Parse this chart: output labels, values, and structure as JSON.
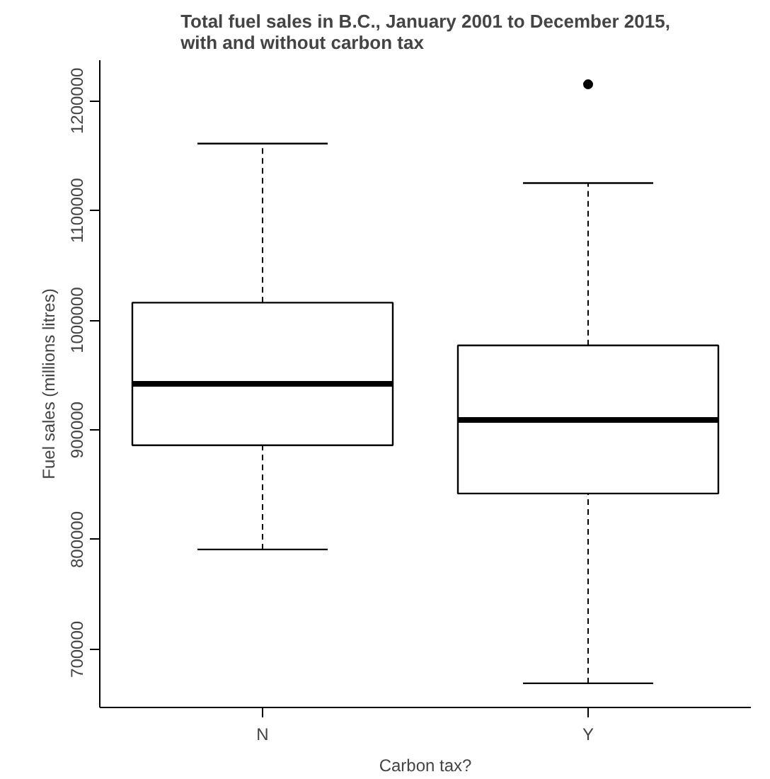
{
  "chart_data": {
    "type": "box",
    "title": "Total fuel sales in B.C., January 2001 to December 2015, with and without carbon tax",
    "xlabel": "Carbon tax?",
    "ylabel": "Fuel sales (millions litres)",
    "categories": [
      "N",
      "Y"
    ],
    "boxes": [
      {
        "low": 791000,
        "q1": 886000,
        "median": 942000,
        "q3": 1016000,
        "high": 1161000
      },
      {
        "low": 669000,
        "q1": 842000,
        "median": 909000,
        "q3": 977000,
        "high": 1125000,
        "outliers": [
          1215000
        ]
      }
    ],
    "ylim": [
      647000,
      1237000
    ],
    "yticks": [
      700000,
      800000,
      900000,
      1000000,
      1100000,
      1200000
    ],
    "grid": false
  }
}
